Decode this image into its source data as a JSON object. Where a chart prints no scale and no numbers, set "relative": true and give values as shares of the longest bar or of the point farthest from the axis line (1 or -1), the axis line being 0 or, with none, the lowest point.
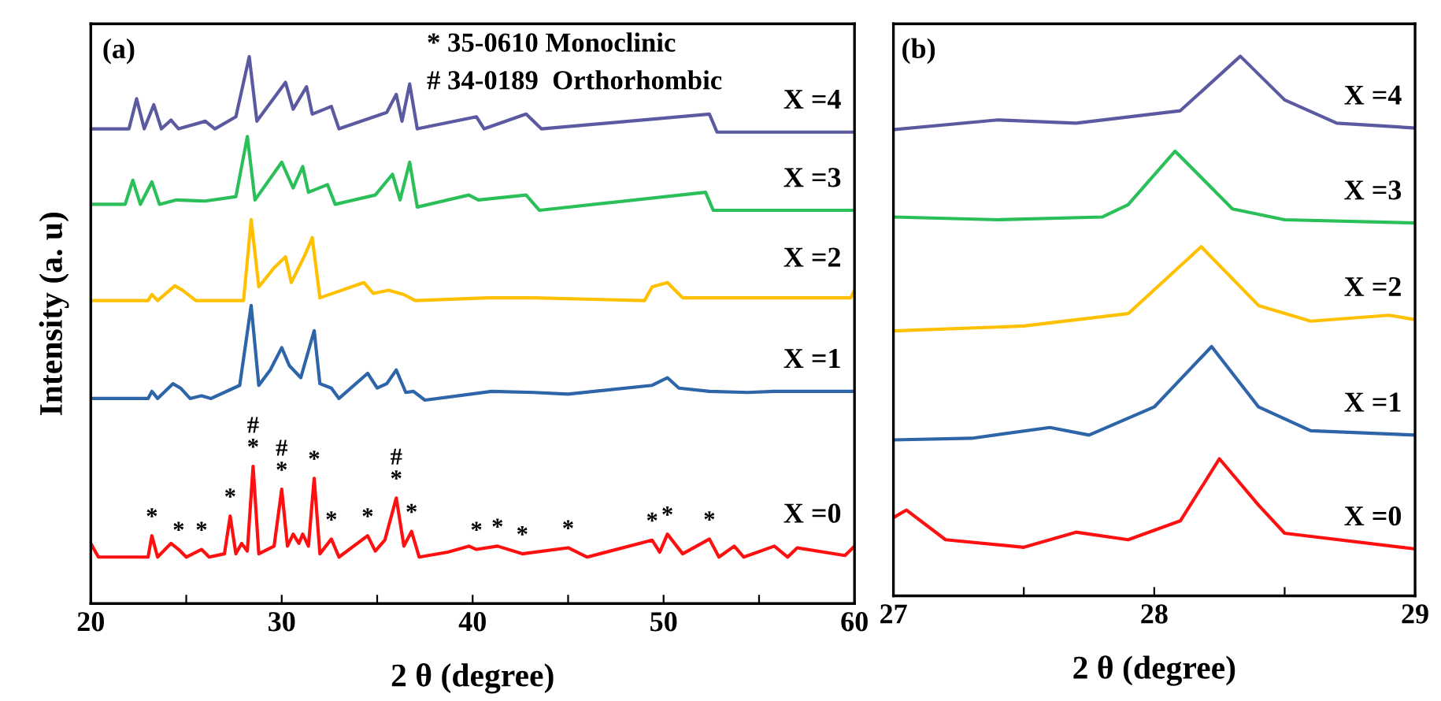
{
  "chart_data": [
    {
      "type": "line",
      "title": "(a)",
      "xlabel": "2 θ (degree)",
      "ylabel": "Intensity (a. u)",
      "relative": true,
      "tick_labels": "x",
      "xlim": [
        20,
        60
      ],
      "xticks": [
        20,
        {
          "value": 25,
          "label": null
        },
        30,
        {
          "value": 35,
          "label": null
        },
        40,
        {
          "value": 45,
          "label": null
        },
        50,
        {
          "value": 55,
          "label": null
        },
        60
      ],
      "series": [
        {
          "name": "X =0",
          "color": "#ff1010",
          "x": [
            20,
            20.4,
            23.0,
            23.2,
            23.5,
            24.2,
            24.6,
            25,
            25.8,
            26.2,
            27.0,
            27.3,
            27.6,
            27.9,
            28.2,
            28.5,
            28.8,
            29.6,
            30.0,
            30.3,
            30.6,
            30.9,
            31.1,
            31.4,
            31.7,
            32.0,
            32.6,
            33.0,
            34.5,
            34.9,
            35.4,
            36.0,
            36.4,
            36.8,
            37.2,
            38.7,
            39.8,
            40.2,
            41.3,
            42.6,
            45.0,
            46,
            49.4,
            49.8,
            50.2,
            51,
            52.4,
            52.9,
            53.7,
            54.2,
            55.8,
            56.5,
            57,
            59.5,
            60
          ],
          "values": [
            0.11,
            0.085,
            0.085,
            0.124,
            0.085,
            0.11,
            0.099,
            0.085,
            0.099,
            0.085,
            0.091,
            0.16,
            0.091,
            0.11,
            0.096,
            0.251,
            0.091,
            0.105,
            0.209,
            0.105,
            0.127,
            0.11,
            0.127,
            0.105,
            0.229,
            0.091,
            0.118,
            0.085,
            0.124,
            0.096,
            0.116,
            0.193,
            0.105,
            0.132,
            0.085,
            0.094,
            0.105,
            0.099,
            0.105,
            0.091,
            0.102,
            0.085,
            0.116,
            0.094,
            0.127,
            0.091,
            0.118,
            0.085,
            0.105,
            0.085,
            0.105,
            0.085,
            0.102,
            0.088,
            0.105
          ]
        },
        {
          "name": "X =1",
          "color": "#2e64a8",
          "x": [
            20,
            23.0,
            23.2,
            23.5,
            24.3,
            24.7,
            25.2,
            25.8,
            26.3,
            27.8,
            28.4,
            28.8,
            29.4,
            30.0,
            30.4,
            31.0,
            31.7,
            32.0,
            32.6,
            33.0,
            34.5,
            35.0,
            35.5,
            36.0,
            36.5,
            36.9,
            37.5,
            41,
            43.2,
            45,
            49.4,
            50.2,
            50.8,
            52.4,
            54.4,
            55.8,
            60
          ],
          "values": [
            0.375,
            0.375,
            0.388,
            0.375,
            0.402,
            0.394,
            0.375,
            0.38,
            0.375,
            0.399,
            0.545,
            0.399,
            0.427,
            0.468,
            0.435,
            0.413,
            0.499,
            0.402,
            0.394,
            0.375,
            0.421,
            0.394,
            0.402,
            0.427,
            0.386,
            0.388,
            0.372,
            0.388,
            0.386,
            0.383,
            0.399,
            0.413,
            0.394,
            0.388,
            0.386,
            0.388,
            0.388
          ]
        },
        {
          "name": "X =2",
          "color": "#ffc000",
          "x": [
            20,
            23.0,
            23.2,
            23.5,
            24.4,
            24.8,
            25.5,
            28.0,
            28.4,
            28.8,
            29.6,
            30.2,
            30.5,
            31.2,
            31.6,
            32.0,
            34.3,
            34.8,
            35.6,
            36.4,
            37,
            40.8,
            43.2,
            49.0,
            49.4,
            50.2,
            51,
            55.4,
            57,
            59.8,
            60
          ],
          "values": [
            0.554,
            0.554,
            0.565,
            0.554,
            0.581,
            0.573,
            0.554,
            0.554,
            0.702,
            0.579,
            0.614,
            0.634,
            0.587,
            0.636,
            0.669,
            0.559,
            0.587,
            0.567,
            0.573,
            0.565,
            0.554,
            0.559,
            0.559,
            0.554,
            0.579,
            0.587,
            0.559,
            0.559,
            0.559,
            0.559,
            0.573
          ]
        },
        {
          "name": "X =3",
          "color": "#2bbf5a",
          "x": [
            20,
            21.8,
            22.2,
            22.6,
            23.2,
            23.6,
            24.5,
            26,
            27.6,
            28.2,
            28.6,
            30.0,
            30.6,
            31.1,
            31.4,
            32.4,
            32.8,
            34.9,
            35.8,
            36.2,
            36.7,
            37.1,
            39.8,
            40.3,
            42.8,
            43.5,
            52.2,
            52.6,
            60
          ],
          "values": [
            0.73,
            0.73,
            0.774,
            0.73,
            0.771,
            0.73,
            0.738,
            0.736,
            0.744,
            0.854,
            0.738,
            0.807,
            0.76,
            0.799,
            0.752,
            0.766,
            0.73,
            0.747,
            0.785,
            0.738,
            0.807,
            0.725,
            0.747,
            0.738,
            0.747,
            0.719,
            0.752,
            0.719,
            0.719
          ]
        },
        {
          "name": "X =4",
          "color": "#5b5aa0",
          "x": [
            20,
            22.0,
            22.4,
            22.8,
            23.3,
            23.7,
            24.2,
            24.6,
            26,
            26.5,
            27.6,
            28.3,
            28.7,
            30.2,
            30.6,
            31.3,
            31.6,
            32.6,
            33,
            35.5,
            36.0,
            36.3,
            36.7,
            37.1,
            40.2,
            40.6,
            42.8,
            43.6,
            52.4,
            52.8,
            60
          ],
          "values": [
            0.868,
            0.868,
            0.923,
            0.868,
            0.912,
            0.868,
            0.884,
            0.868,
            0.882,
            0.868,
            0.89,
            1.0,
            0.882,
            0.953,
            0.904,
            0.945,
            0.895,
            0.909,
            0.868,
            0.898,
            0.931,
            0.882,
            0.95,
            0.868,
            0.89,
            0.868,
            0.895,
            0.868,
            0.895,
            0.862,
            0.862
          ]
        }
      ],
      "annotations": [
        "* 35-0610 Monoclinic",
        "# 34-0189  Orthorhombic",
        {
          "text": "*",
          "x": 23.2,
          "y": 0.124
        },
        {
          "text": "*",
          "x": 24.6,
          "y": 0.099
        },
        {
          "text": "*",
          "x": 25.8,
          "y": 0.099
        },
        {
          "text": "*",
          "x": 27.3,
          "y": 0.16
        },
        {
          "text": "*",
          "x": 28.5,
          "y": 0.251
        },
        {
          "text": "#",
          "x": 28.5,
          "y": 0.251
        },
        {
          "text": "*",
          "x": 30.0,
          "y": 0.209
        },
        {
          "text": "#",
          "x": 30.0,
          "y": 0.209
        },
        {
          "text": "*",
          "x": 31.7,
          "y": 0.229
        },
        {
          "text": "*",
          "x": 32.6,
          "y": 0.118
        },
        {
          "text": "*",
          "x": 34.5,
          "y": 0.124
        },
        {
          "text": "*",
          "x": 36.0,
          "y": 0.193
        },
        {
          "text": "#",
          "x": 36.0,
          "y": 0.193
        },
        {
          "text": "*",
          "x": 36.8,
          "y": 0.132
        },
        {
          "text": "*",
          "x": 40.2,
          "y": 0.099
        },
        {
          "text": "*",
          "x": 41.3,
          "y": 0.105
        },
        {
          "text": "*",
          "x": 42.6,
          "y": 0.091
        },
        {
          "text": "*",
          "x": 45.0,
          "y": 0.102
        },
        {
          "text": "*",
          "x": 49.4,
          "y": 0.116
        },
        {
          "text": "*",
          "x": 50.2,
          "y": 0.127
        },
        {
          "text": "*",
          "x": 52.4,
          "y": 0.118
        }
      ]
    },
    {
      "type": "line",
      "title": "(b)",
      "xlabel": "2 θ (degree)",
      "relative": true,
      "tick_labels": "x",
      "xlim": [
        27,
        29
      ],
      "xticks": [
        27,
        {
          "value": 27.5,
          "label": null
        },
        28,
        {
          "value": 28.5,
          "label": null
        },
        29
      ],
      "series": [
        {
          "name": "X =0",
          "color": "#ff1010",
          "x": [
            27.0,
            27.05,
            27.2,
            27.5,
            27.7,
            27.9,
            28.1,
            28.25,
            28.4,
            28.5,
            29
          ],
          "values": [
            0.145,
            0.159,
            0.104,
            0.09,
            0.118,
            0.104,
            0.139,
            0.254,
            0.168,
            0.116,
            0.087
          ]
        },
        {
          "name": "X =1",
          "color": "#2e64a8",
          "x": [
            27,
            27.3,
            27.6,
            27.75,
            28.0,
            28.22,
            28.4,
            28.6,
            29
          ],
          "values": [
            0.289,
            0.292,
            0.312,
            0.298,
            0.35,
            0.462,
            0.35,
            0.306,
            0.298
          ]
        },
        {
          "name": "X =2",
          "color": "#ffc000",
          "x": [
            27,
            27.5,
            27.9,
            28.18,
            28.4,
            28.6,
            28.9,
            29
          ],
          "values": [
            0.491,
            0.5,
            0.523,
            0.647,
            0.538,
            0.509,
            0.52,
            0.512
          ]
        },
        {
          "name": "X =3",
          "color": "#2bbf5a",
          "x": [
            27,
            27.4,
            27.8,
            27.9,
            28.08,
            28.3,
            28.5,
            29
          ],
          "values": [
            0.702,
            0.697,
            0.702,
            0.725,
            0.824,
            0.717,
            0.697,
            0.691
          ]
        },
        {
          "name": "X =4",
          "color": "#5b5aa0",
          "x": [
            27,
            27.4,
            27.7,
            28.1,
            28.33,
            28.5,
            28.7,
            29
          ],
          "values": [
            0.864,
            0.882,
            0.876,
            0.899,
            1.0,
            0.919,
            0.876,
            0.867
          ]
        }
      ]
    }
  ]
}
